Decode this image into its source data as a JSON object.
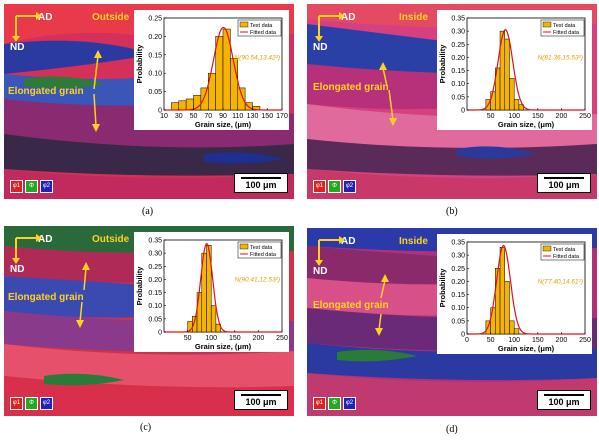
{
  "panels": [
    {
      "label": "(a)",
      "direction_h": "AD",
      "direction_v": "ND",
      "side": "Outside",
      "annotation": "Elongated grain",
      "scale": "100 μm",
      "euler": [
        "φ1",
        "Φ",
        "φ2"
      ],
      "fit_text": "N(90.54,13.42²)",
      "legend": [
        "Test data",
        "Fitted data"
      ],
      "xlabel": "Grain size, (μm)",
      "ylabel": "Probability",
      "colors": {
        "test": "#f5b400",
        "fit": "#e0101e"
      }
    },
    {
      "label": "(b)",
      "direction_h": "AD",
      "direction_v": "ND",
      "side": "Inside",
      "annotation": "Elongated grain",
      "scale": "100 μm",
      "euler": [
        "φ1",
        "Φ",
        "φ2"
      ],
      "fit_text": "N(81.36,15.53²)",
      "legend": [
        "Test data",
        "Fitted data"
      ],
      "xlabel": "Grain size, (μm)",
      "ylabel": "Probability",
      "colors": {
        "test": "#f5b400",
        "fit": "#e0101e"
      }
    },
    {
      "label": "(c)",
      "direction_h": "AD",
      "direction_v": "ND",
      "side": "Outside",
      "annotation": "Elongated grain",
      "scale": "100 μm",
      "euler": [
        "φ1",
        "Φ",
        "φ2"
      ],
      "fit_text": "N(90.41,12.53²)",
      "legend": [
        "Test data",
        "Fitted data"
      ],
      "xlabel": "Grain size, (μm)",
      "ylabel": "Probability",
      "colors": {
        "test": "#f5b400",
        "fit": "#e0101e"
      }
    },
    {
      "label": "(d)",
      "direction_h": "AD",
      "direction_v": "ND",
      "side": "Inside",
      "annotation": "Elongated grain",
      "scale": "100 μm",
      "euler": [
        "φ1",
        "Φ",
        "φ2"
      ],
      "fit_text": "N(77.40,14.61²)",
      "legend": [
        "Test data",
        "Fitted data"
      ],
      "xlabel": "Grain size, (μm)",
      "ylabel": "Probability",
      "colors": {
        "test": "#f5b400",
        "fit": "#e0101e"
      }
    }
  ],
  "chart_data": [
    {
      "type": "bar",
      "xlabel": "Grain size, (μm)",
      "ylabel": "Probability",
      "xlim": [
        10,
        170
      ],
      "xticks": [
        10,
        30,
        50,
        70,
        90,
        110,
        130,
        150,
        170
      ],
      "ylim": [
        0,
        0.25
      ],
      "yticks": [
        0,
        0.05,
        0.1,
        0.15,
        0.2,
        0.25
      ],
      "bin_width": 10,
      "categories": [
        25,
        35,
        45,
        55,
        65,
        75,
        85,
        95,
        105,
        115,
        125,
        135
      ],
      "series": [
        {
          "name": "Test data",
          "values": [
            0.02,
            0.025,
            0.03,
            0.04,
            0.06,
            0.1,
            0.2,
            0.22,
            0.14,
            0.06,
            0.02,
            0.01
          ]
        },
        {
          "name": "Fitted data",
          "fit": {
            "mean": 90.54,
            "std": 13.42
          }
        }
      ],
      "annotations": [
        "N(90.54,13.42²)"
      ],
      "legend": "top-right"
    },
    {
      "type": "bar",
      "xlabel": "Grain size, (μm)",
      "ylabel": "Probability",
      "xlim": [
        0,
        250
      ],
      "xticks": [
        50,
        100,
        150,
        200,
        250
      ],
      "ylim": [
        0,
        0.35
      ],
      "yticks": [
        0,
        0.05,
        0.1,
        0.15,
        0.2,
        0.25,
        0.3,
        0.35
      ],
      "bin_width": 10,
      "categories": [
        45,
        55,
        65,
        75,
        85,
        95,
        105,
        115
      ],
      "series": [
        {
          "name": "Test data",
          "values": [
            0.04,
            0.07,
            0.16,
            0.3,
            0.27,
            0.12,
            0.04,
            0.02
          ]
        },
        {
          "name": "Fitted data",
          "fit": {
            "mean": 81.36,
            "std": 15.53
          }
        }
      ],
      "annotations": [
        "N(81.36,15.53²)"
      ],
      "legend": "top-right"
    },
    {
      "type": "bar",
      "xlabel": "Grain size, (μm)",
      "ylabel": "Probability",
      "xlim": [
        0,
        250
      ],
      "xticks": [
        50,
        100,
        150,
        200,
        250
      ],
      "ylim": [
        0,
        0.35
      ],
      "yticks": [
        0,
        0.05,
        0.1,
        0.15,
        0.2,
        0.25,
        0.3,
        0.35
      ],
      "bin_width": 10,
      "categories": [
        55,
        65,
        75,
        85,
        95,
        105,
        115
      ],
      "series": [
        {
          "name": "Test data",
          "values": [
            0.04,
            0.06,
            0.15,
            0.3,
            0.33,
            0.1,
            0.03
          ]
        },
        {
          "name": "Fitted data",
          "fit": {
            "mean": 90.41,
            "std": 12.53
          }
        }
      ],
      "annotations": [
        "N(90.41,12.53²)"
      ],
      "legend": "top-right"
    },
    {
      "type": "bar",
      "xlabel": "Grain size, (μm)",
      "ylabel": "Probability",
      "xlim": [
        0,
        250
      ],
      "xticks": [
        0,
        50,
        100,
        150,
        200,
        250
      ],
      "ylim": [
        0,
        0.35
      ],
      "yticks": [
        0,
        0.05,
        0.1,
        0.15,
        0.2,
        0.25,
        0.3,
        0.35
      ],
      "bin_width": 10,
      "categories": [
        45,
        55,
        65,
        75,
        85,
        95,
        105
      ],
      "series": [
        {
          "name": "Test data",
          "values": [
            0.05,
            0.1,
            0.25,
            0.33,
            0.2,
            0.05,
            0.02
          ]
        },
        {
          "name": "Fitted data",
          "fit": {
            "mean": 77.4,
            "std": 14.61
          }
        }
      ],
      "annotations": [
        "N(77.40,14.61²)"
      ],
      "legend": "top-right"
    }
  ]
}
